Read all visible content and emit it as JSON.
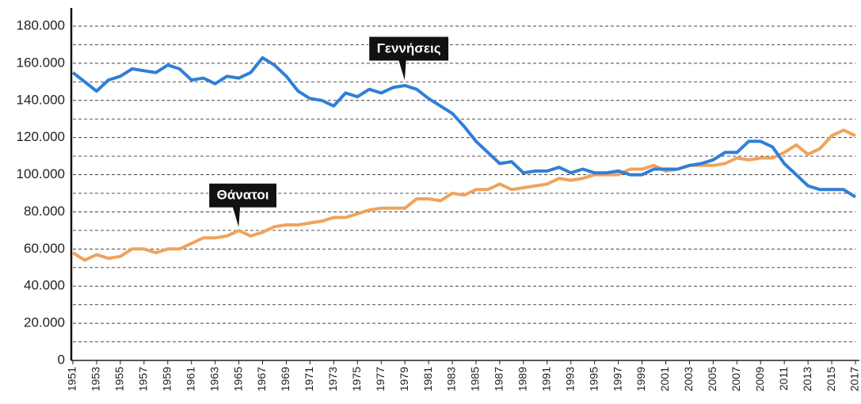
{
  "chart_data": {
    "type": "line",
    "x": [
      1951,
      1952,
      1953,
      1954,
      1955,
      1956,
      1957,
      1958,
      1959,
      1960,
      1961,
      1962,
      1963,
      1964,
      1965,
      1966,
      1967,
      1968,
      1969,
      1970,
      1971,
      1972,
      1973,
      1974,
      1975,
      1976,
      1977,
      1978,
      1979,
      1980,
      1981,
      1982,
      1983,
      1984,
      1985,
      1986,
      1987,
      1988,
      1989,
      1990,
      1991,
      1992,
      1993,
      1994,
      1995,
      1996,
      1997,
      1998,
      1999,
      2000,
      2001,
      2002,
      2003,
      2004,
      2005,
      2006,
      2007,
      2008,
      2009,
      2010,
      2011,
      2012,
      2013,
      2014,
      2015,
      2016,
      2017
    ],
    "series": [
      {
        "name": "Γεννήσεις",
        "color": "#2f7fd6",
        "values": [
          155000,
          150000,
          145000,
          151000,
          153000,
          157000,
          156000,
          155000,
          159000,
          157000,
          151000,
          152000,
          149000,
          153000,
          152000,
          155000,
          163000,
          159000,
          153000,
          145000,
          141000,
          140000,
          137000,
          144000,
          142000,
          146000,
          144000,
          147000,
          148000,
          146000,
          141000,
          137000,
          133000,
          126000,
          118000,
          112000,
          106000,
          107000,
          101000,
          102000,
          102000,
          104000,
          101000,
          103000,
          101000,
          101000,
          102000,
          100000,
          100000,
          103000,
          103000,
          103000,
          105000,
          106000,
          108000,
          112000,
          112000,
          118000,
          118000,
          115000,
          106000,
          100000,
          94000,
          92000,
          92000,
          92000,
          88000
        ]
      },
      {
        "name": "Θάνατοι",
        "color": "#f0a35c",
        "values": [
          58000,
          54000,
          57000,
          55000,
          56000,
          60000,
          60000,
          58000,
          60000,
          60000,
          63000,
          66000,
          66000,
          67000,
          70000,
          67000,
          69000,
          72000,
          73000,
          73000,
          74000,
          75000,
          77000,
          77000,
          79000,
          81000,
          82000,
          82000,
          82000,
          87000,
          87000,
          86000,
          90000,
          89000,
          92000,
          92000,
          95000,
          92000,
          93000,
          94000,
          95000,
          98000,
          97000,
          98000,
          100000,
          100000,
          100000,
          103000,
          103000,
          105000,
          102000,
          103000,
          105000,
          105000,
          105000,
          106000,
          109000,
          108000,
          109000,
          109000,
          112000,
          116000,
          111000,
          114000,
          121000,
          124000,
          121000
        ]
      }
    ],
    "annotations": [
      {
        "text": "Γεννήσεις",
        "x": 1979,
        "y": 148000,
        "series": 0
      },
      {
        "text": "Θάνατοι",
        "x": 1965,
        "y": 69000,
        "series": 1
      }
    ],
    "xlim": [
      1951,
      2017
    ],
    "xticks": [
      1951,
      1953,
      1955,
      1957,
      1959,
      1961,
      1963,
      1965,
      1967,
      1969,
      1971,
      1973,
      1975,
      1977,
      1979,
      1981,
      1983,
      1985,
      1987,
      1989,
      1991,
      1993,
      1995,
      1997,
      1999,
      2001,
      2003,
      2005,
      2007,
      2009,
      2011,
      2013,
      2015,
      2017
    ],
    "ylim": [
      0,
      180000
    ],
    "yticks": [
      0,
      {
        "value": 20000,
        "label": "20.000"
      },
      {
        "value": 40000,
        "label": "40.000"
      },
      {
        "value": 60000,
        "label": "60.000"
      },
      {
        "value": 80000,
        "label": "80.000"
      },
      {
        "value": 100000,
        "label": "100.000"
      },
      {
        "value": 120000,
        "label": "120.000"
      },
      {
        "value": 140000,
        "label": "140.000"
      },
      {
        "value": 160000,
        "label": "160.000"
      },
      {
        "value": 180000,
        "label": "180.000"
      }
    ],
    "minor_yticks": [
      10000,
      30000,
      50000,
      70000,
      90000,
      110000,
      130000,
      150000,
      170000
    ],
    "grid": true
  }
}
